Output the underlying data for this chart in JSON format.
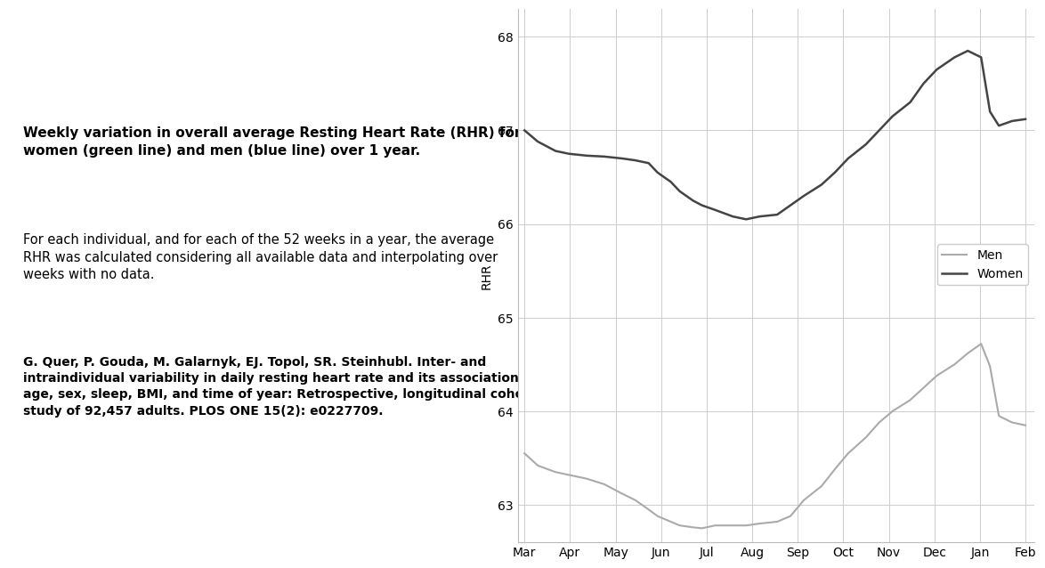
{
  "months": [
    "Mar",
    "Apr",
    "May",
    "Jun",
    "Jul",
    "Aug",
    "Sep",
    "Oct",
    "Nov",
    "Dec",
    "Jan",
    "Feb"
  ],
  "ylim": [
    62.6,
    68.3
  ],
  "yticks": [
    63,
    64,
    65,
    66,
    67,
    68
  ],
  "ylabel": "RHR",
  "women_color": "#444444",
  "men_color": "#aaaaaa",
  "grid_color": "#cccccc",
  "background_color": "#ffffff",
  "title_bold": "Weekly variation in overall average Resting Heart Rate (RHR) for\nwomen (green line) and men (blue line) over 1 year.",
  "title_normal": "For each individual, and for each of the 52 weeks in a year, the average\nRHR was calculated considering all available data and interpolating over\nweeks with no data.",
  "citation": "G. Quer, P. Gouda, M. Galarnyk, EJ. Topol, SR. Steinhubl. Inter- and\nintraindividual variability in daily resting heart rate and its associations with\nage, sex, sleep, BMI, and time of year: Retrospective, longitudinal cohort\nstudy of 92,457 adults. PLOS ONE 15(2): e0227709.",
  "legend_labels": [
    "Men",
    "Women"
  ],
  "title_fontsize": 11,
  "citation_fontsize": 10,
  "axis_fontsize": 10,
  "women_x": [
    0,
    0.3,
    0.7,
    1.0,
    1.4,
    1.8,
    2.2,
    2.5,
    2.8,
    3.0,
    3.3,
    3.5,
    3.8,
    4.0,
    4.3,
    4.7,
    5.0,
    5.3,
    5.7,
    6.0,
    6.3,
    6.7,
    7.0,
    7.3,
    7.7,
    8.0,
    8.3,
    8.7,
    9.0,
    9.3,
    9.7,
    10.0,
    10.3,
    10.5,
    10.7,
    11.0,
    11.3
  ],
  "women_y": [
    67.0,
    66.88,
    66.78,
    66.75,
    66.73,
    66.72,
    66.7,
    66.68,
    66.65,
    66.55,
    66.45,
    66.35,
    66.25,
    66.2,
    66.15,
    66.08,
    66.05,
    66.08,
    66.1,
    66.2,
    66.3,
    66.42,
    66.55,
    66.7,
    66.85,
    67.0,
    67.15,
    67.3,
    67.5,
    67.65,
    67.78,
    67.85,
    67.78,
    67.2,
    67.05,
    67.1,
    67.12
  ],
  "men_x": [
    0,
    0.3,
    0.7,
    1.0,
    1.4,
    1.8,
    2.2,
    2.5,
    2.8,
    3.0,
    3.3,
    3.5,
    3.8,
    4.0,
    4.3,
    4.7,
    5.0,
    5.3,
    5.7,
    6.0,
    6.3,
    6.7,
    7.0,
    7.3,
    7.7,
    8.0,
    8.3,
    8.7,
    9.0,
    9.3,
    9.7,
    10.0,
    10.3,
    10.5,
    10.7,
    11.0,
    11.3
  ],
  "men_y": [
    63.55,
    63.42,
    63.35,
    63.32,
    63.28,
    63.22,
    63.12,
    63.05,
    62.95,
    62.88,
    62.82,
    62.78,
    62.76,
    62.75,
    62.78,
    62.78,
    62.78,
    62.8,
    62.82,
    62.88,
    63.05,
    63.2,
    63.38,
    63.55,
    63.72,
    63.88,
    64.0,
    64.12,
    64.25,
    64.38,
    64.5,
    64.62,
    64.72,
    64.48,
    63.95,
    63.88,
    63.85
  ]
}
